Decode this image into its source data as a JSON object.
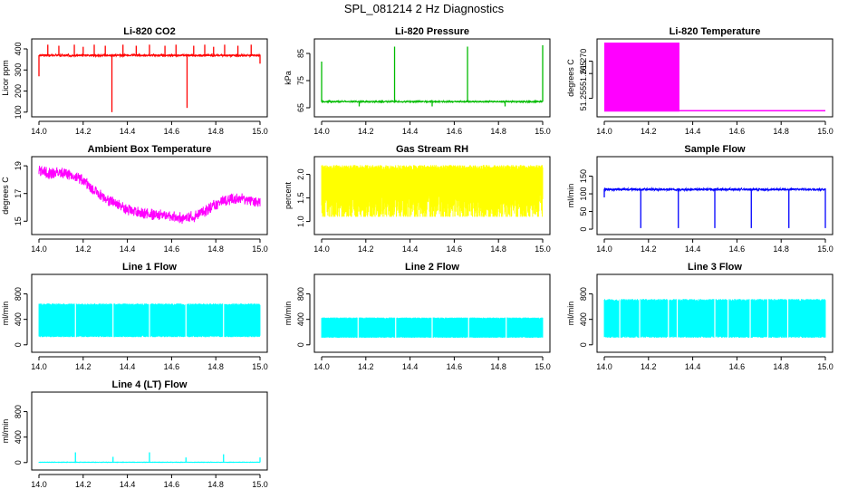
{
  "figure": {
    "title": "SPL_081214  2 Hz Diagnostics"
  },
  "chart_data": [
    {
      "id": "co2",
      "type": "line",
      "title": "Li-820 CO2",
      "ylabel": "Licor ppm",
      "color": "#ff0000",
      "xlim": [
        14.0,
        15.0
      ],
      "ylim": [
        95,
        430
      ],
      "x_ticks": [
        14.0,
        14.2,
        14.4,
        14.6,
        14.8,
        15.0
      ],
      "x_tick_labels": [
        "14.0",
        "14.2",
        "14.4",
        "14.6",
        "14.8",
        "15.0"
      ],
      "y_ticks": [
        100,
        200,
        300,
        400
      ],
      "y_tick_labels": [
        "100",
        "200",
        "300",
        "400"
      ],
      "series": [
        {
          "name": "CO2",
          "base": 370,
          "noise": 10,
          "spikes": [
            [
              14.0,
              270
            ],
            [
              14.04,
              420
            ],
            [
              14.09,
              415
            ],
            [
              14.16,
              420
            ],
            [
              14.2,
              410
            ],
            [
              14.25,
              420
            ],
            [
              14.3,
              415
            ],
            [
              14.33,
              100
            ],
            [
              14.38,
              420
            ],
            [
              14.44,
              415
            ],
            [
              14.5,
              420
            ],
            [
              14.57,
              415
            ],
            [
              14.62,
              420
            ],
            [
              14.67,
              120
            ],
            [
              14.7,
              415
            ],
            [
              14.75,
              420
            ],
            [
              14.79,
              410
            ],
            [
              14.84,
              420
            ],
            [
              14.9,
              415
            ],
            [
              14.96,
              420
            ],
            [
              15.0,
              330
            ]
          ]
        }
      ]
    },
    {
      "id": "pressure",
      "type": "line",
      "title": "Li-820 Pressure",
      "ylabel": "kPa",
      "color": "#00bb00",
      "xlim": [
        14.0,
        15.0
      ],
      "ylim": [
        63,
        89
      ],
      "x_ticks": [
        14.0,
        14.2,
        14.4,
        14.6,
        14.8,
        15.0
      ],
      "x_tick_labels": [
        "14.0",
        "14.2",
        "14.4",
        "14.6",
        "14.8",
        "15.0"
      ],
      "y_ticks": [
        65,
        75,
        85
      ],
      "y_tick_labels": [
        "65",
        "75",
        "85"
      ],
      "series": [
        {
          "name": "Pressure",
          "base": 67.3,
          "noise": 0.4,
          "spikes": [
            [
              14.0,
              82
            ],
            [
              14.17,
              65.5
            ],
            [
              14.33,
              87.5
            ],
            [
              14.5,
              65.5
            ],
            [
              14.66,
              87.5
            ],
            [
              14.83,
              65.5
            ],
            [
              15.0,
              88
            ]
          ]
        }
      ]
    },
    {
      "id": "temperature",
      "type": "area",
      "title": "Li-820 Temperature",
      "ylabel": "degrees C",
      "color": "#ff00ff",
      "xlim": [
        14.0,
        15.0
      ],
      "ylim": [
        51.249,
        51.2775
      ],
      "x_ticks": [
        14.0,
        14.2,
        14.4,
        14.6,
        14.8,
        15.0
      ],
      "x_tick_labels": [
        "14.0",
        "14.2",
        "14.4",
        "14.6",
        "14.8",
        "15.0"
      ],
      "y_ticks": [
        51.255,
        51.265,
        51.27
      ],
      "y_tick_labels": [
        "51.255",
        "51.265",
        "51.270"
      ],
      "series": [
        {
          "name": "Temperature",
          "steps": [
            [
              14.0,
              51.2775
            ],
            [
              14.34,
              51.25
            ],
            [
              15.0,
              51.25
            ]
          ]
        }
      ]
    },
    {
      "id": "ambient",
      "type": "line",
      "title": "Ambient Box Temperature",
      "ylabel": "degrees C",
      "color": "#ff00ff",
      "xlim": [
        14.0,
        15.0
      ],
      "ylim": [
        14.3,
        19.4
      ],
      "x_ticks": [
        14.0,
        14.2,
        14.4,
        14.6,
        14.8,
        15.0
      ],
      "x_tick_labels": [
        "14.0",
        "14.2",
        "14.4",
        "14.6",
        "14.8",
        "15.0"
      ],
      "y_ticks": [
        15,
        17,
        19
      ],
      "y_tick_labels": [
        "15",
        "17",
        "19"
      ],
      "series": [
        {
          "name": "Ambient",
          "points": [
            [
              14.0,
              18.7
            ],
            [
              14.05,
              18.5
            ],
            [
              14.1,
              18.6
            ],
            [
              14.15,
              18.4
            ],
            [
              14.2,
              18.0
            ],
            [
              14.25,
              17.3
            ],
            [
              14.3,
              16.7
            ],
            [
              14.35,
              16.3
            ],
            [
              14.4,
              15.9
            ],
            [
              14.45,
              15.7
            ],
            [
              14.5,
              15.6
            ],
            [
              14.55,
              15.5
            ],
            [
              14.6,
              15.4
            ],
            [
              14.65,
              15.3
            ],
            [
              14.7,
              15.4
            ],
            [
              14.75,
              15.8
            ],
            [
              14.8,
              16.3
            ],
            [
              14.85,
              16.6
            ],
            [
              14.9,
              16.7
            ],
            [
              14.95,
              16.6
            ],
            [
              15.0,
              16.5
            ]
          ],
          "noise": 0.7
        }
      ]
    },
    {
      "id": "rh",
      "type": "line",
      "title": "Gas Stream RH",
      "ylabel": "percent",
      "color": "#ffff00",
      "xlim": [
        14.0,
        15.0
      ],
      "ylim": [
        0.8,
        2.3
      ],
      "x_ticks": [
        14.0,
        14.2,
        14.4,
        14.6,
        14.8,
        15.0
      ],
      "x_tick_labels": [
        "14.0",
        "14.2",
        "14.4",
        "14.6",
        "14.8",
        "15.0"
      ],
      "y_ticks": [
        1.0,
        1.5,
        2.0
      ],
      "y_tick_labels": [
        "1.0",
        "1.5",
        "2.0"
      ],
      "series": [
        {
          "name": "RH",
          "band": [
            1.1,
            2.2
          ]
        }
      ]
    },
    {
      "id": "sample",
      "type": "line",
      "title": "Sample Flow",
      "ylabel": "ml/min",
      "color": "#0000ff",
      "xlim": [
        14.0,
        15.0
      ],
      "ylim": [
        -5,
        195
      ],
      "x_ticks": [
        14.0,
        14.2,
        14.4,
        14.6,
        14.8,
        15.0
      ],
      "x_tick_labels": [
        "14.0",
        "14.2",
        "14.4",
        "14.6",
        "14.8",
        "15.0"
      ],
      "y_ticks": [
        0,
        50,
        100,
        150
      ],
      "y_tick_labels": [
        "0",
        "50",
        "100",
        "150"
      ],
      "series": [
        {
          "name": "Sample",
          "base": 113,
          "noise": 6,
          "spikes": [
            [
              14.0,
              90
            ],
            [
              14.165,
              3
            ],
            [
              14.335,
              3
            ],
            [
              14.5,
              3
            ],
            [
              14.665,
              3
            ],
            [
              14.835,
              3
            ],
            [
              15.0,
              3
            ]
          ]
        }
      ]
    },
    {
      "id": "line1",
      "type": "line",
      "title": "Line 1 Flow",
      "ylabel": "ml/min",
      "color": "#00ffff",
      "xlim": [
        14.0,
        15.0
      ],
      "ylim": [
        -60,
        1050
      ],
      "x_ticks": [
        14.0,
        14.2,
        14.4,
        14.6,
        14.8,
        15.0
      ],
      "x_tick_labels": [
        "14.0",
        "14.2",
        "14.4",
        "14.6",
        "14.8",
        "15.0"
      ],
      "y_ticks": [
        0,
        400,
        800
      ],
      "y_tick_labels": [
        "0",
        "400",
        "800"
      ],
      "series": [
        {
          "name": "Line 1",
          "band": [
            120,
            650
          ],
          "gaps": [
            14.165,
            14.335,
            14.5,
            14.665,
            14.835
          ]
        }
      ]
    },
    {
      "id": "line2",
      "type": "line",
      "title": "Line 2 Flow",
      "ylabel": "ml/min",
      "color": "#00ffff",
      "xlim": [
        14.0,
        15.0
      ],
      "ylim": [
        -60,
        1050
      ],
      "x_ticks": [
        14.0,
        14.2,
        14.4,
        14.6,
        14.8,
        15.0
      ],
      "x_tick_labels": [
        "14.0",
        "14.2",
        "14.4",
        "14.6",
        "14.8",
        "15.0"
      ],
      "y_ticks": [
        0,
        400,
        800
      ],
      "y_tick_labels": [
        "0",
        "400",
        "800"
      ],
      "series": [
        {
          "name": "Line 2",
          "band": [
            110,
            430
          ],
          "gaps": [
            14.165,
            14.335,
            14.5,
            14.665,
            14.835
          ]
        }
      ]
    },
    {
      "id": "line3",
      "type": "line",
      "title": "Line 3 Flow",
      "ylabel": "ml/min",
      "color": "#00ffff",
      "xlim": [
        14.0,
        15.0
      ],
      "ylim": [
        -60,
        1050
      ],
      "x_ticks": [
        14.0,
        14.2,
        14.4,
        14.6,
        14.8,
        15.0
      ],
      "x_tick_labels": [
        "14.0",
        "14.2",
        "14.4",
        "14.6",
        "14.8",
        "15.0"
      ],
      "y_ticks": [
        0,
        400,
        800
      ],
      "y_tick_labels": [
        "0",
        "400",
        "800"
      ],
      "series": [
        {
          "name": "Line 3",
          "band": [
            110,
            720
          ],
          "gaps": [
            14.16,
            14.33,
            14.5,
            14.66,
            14.83,
            14.07,
            14.29,
            14.56,
            14.74
          ]
        }
      ]
    },
    {
      "id": "line4",
      "type": "line",
      "title": "Line 4 (LT) Flow",
      "ylabel": "ml/min",
      "color": "#00ffff",
      "xlim": [
        14.0,
        15.0
      ],
      "ylim": [
        -60,
        1050
      ],
      "x_ticks": [
        14.0,
        14.2,
        14.4,
        14.6,
        14.8,
        15.0
      ],
      "x_tick_labels": [
        "14.0",
        "14.2",
        "14.4",
        "14.6",
        "14.8",
        "15.0"
      ],
      "y_ticks": [
        0,
        400,
        800
      ],
      "y_tick_labels": [
        "0",
        "400",
        "800"
      ],
      "series": [
        {
          "name": "Line 4",
          "base": 5,
          "noise": 4,
          "spikes": [
            [
              14.165,
              160
            ],
            [
              14.335,
              90
            ],
            [
              14.5,
              160
            ],
            [
              14.665,
              80
            ],
            [
              14.835,
              130
            ],
            [
              15.0,
              80
            ]
          ]
        }
      ]
    }
  ]
}
